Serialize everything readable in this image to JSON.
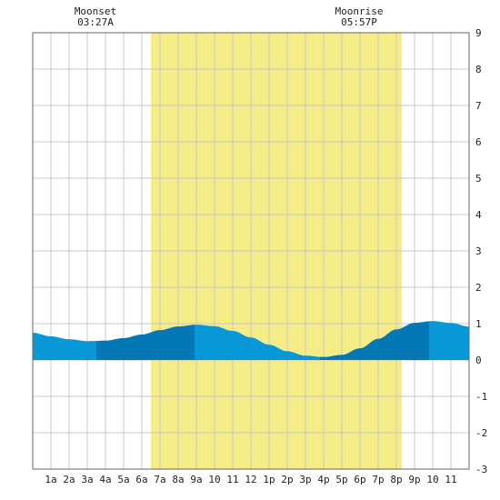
{
  "chart_data": {
    "type": "area",
    "title": "",
    "xlabel": "",
    "ylabel": "",
    "x_ticks": [
      "1a",
      "2a",
      "3a",
      "4a",
      "5a",
      "6a",
      "7a",
      "8a",
      "9a",
      "10",
      "11",
      "12",
      "1p",
      "2p",
      "3p",
      "4p",
      "5p",
      "6p",
      "7p",
      "8p",
      "9p",
      "10",
      "11"
    ],
    "xlim": [
      0,
      24
    ],
    "ylim": [
      -3,
      9
    ],
    "y_ticks": [
      "-3",
      "-2",
      "-1",
      "0",
      "1",
      "2",
      "3",
      "4",
      "5",
      "6",
      "7",
      "8",
      "9"
    ],
    "grid": true,
    "daylight": {
      "start_hour": 6.5,
      "end_hour": 20.3,
      "color": "#f5ec88"
    },
    "moon_events": [
      {
        "label": "Moonset",
        "time": "03:27A",
        "hour": 3.45
      },
      {
        "label": "Moonrise",
        "time": "05:57P",
        "hour": 17.95
      }
    ],
    "series": [
      {
        "x": [
          0,
          1,
          2,
          3,
          4,
          5,
          6,
          7,
          8,
          9,
          10,
          11,
          12,
          13,
          14,
          15,
          16,
          17,
          18,
          19,
          20,
          21,
          22,
          23,
          24
        ],
        "values": [
          0.75,
          0.65,
          0.57,
          0.52,
          0.53,
          0.6,
          0.7,
          0.82,
          0.92,
          0.97,
          0.93,
          0.8,
          0.62,
          0.42,
          0.24,
          0.12,
          0.08,
          0.14,
          0.32,
          0.58,
          0.84,
          1.02,
          1.07,
          1.02,
          0.92
        ]
      }
    ],
    "colors": {
      "tide_light": "#0898d8",
      "tide_dark": "#0478b4"
    },
    "dark_bands": [
      [
        3.5,
        8.9
      ],
      [
        15.8,
        21.8
      ]
    ]
  }
}
